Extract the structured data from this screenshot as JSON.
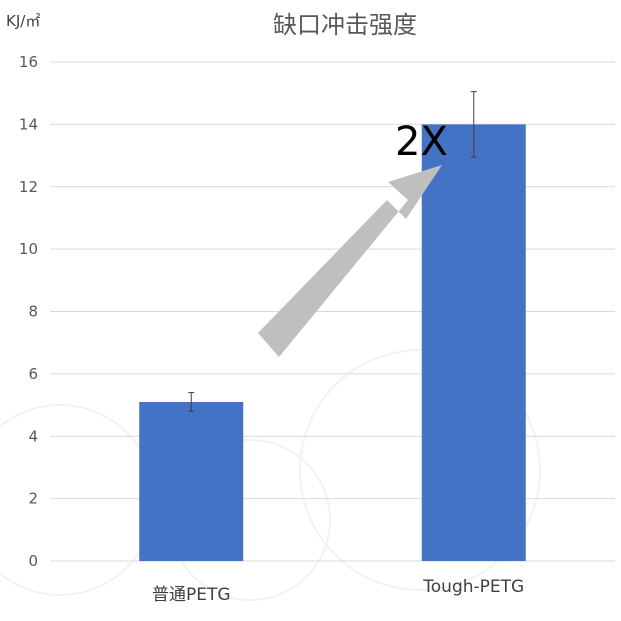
{
  "chart_data": {
    "type": "bar",
    "title": "缺口冲击强度",
    "ylabel": "KJ/㎡",
    "xlabel": "",
    "categories": [
      "普通PETG",
      "Tough-PETG"
    ],
    "values": [
      5.1,
      14.0
    ],
    "error_low": [
      4.8,
      12.95
    ],
    "error_high": [
      5.4,
      15.05
    ],
    "ylim": [
      0,
      16
    ],
    "yticks": [
      "0",
      "2",
      "4",
      "6",
      "8",
      "10",
      "12",
      "14",
      "16"
    ],
    "grid": true,
    "annotation": "2X",
    "colors": {
      "bar": "#4472C4",
      "arrow": "#BFBFBF",
      "grid": "#D9D9D9"
    }
  }
}
